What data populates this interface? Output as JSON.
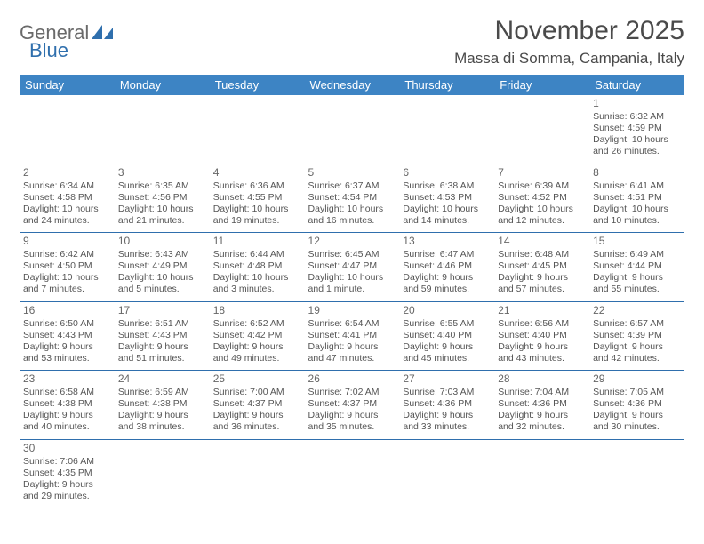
{
  "logo": {
    "text1": "General",
    "text2": "Blue"
  },
  "title": "November 2025",
  "location": "Massa di Somma, Campania, Italy",
  "colors": {
    "header_bg": "#3d84c4",
    "header_text": "#ffffff",
    "row_border": "#2f6fad",
    "body_text": "#555555",
    "title_text": "#4a4a4a",
    "logo_gray": "#6a6a6a",
    "logo_blue": "#2f6fad",
    "page_bg": "#ffffff"
  },
  "day_headers": [
    "Sunday",
    "Monday",
    "Tuesday",
    "Wednesday",
    "Thursday",
    "Friday",
    "Saturday"
  ],
  "first_weekday": 6,
  "days": [
    {
      "n": 1,
      "sunrise": "6:32 AM",
      "sunset": "4:59 PM",
      "daylight": "10 hours and 26 minutes."
    },
    {
      "n": 2,
      "sunrise": "6:34 AM",
      "sunset": "4:58 PM",
      "daylight": "10 hours and 24 minutes."
    },
    {
      "n": 3,
      "sunrise": "6:35 AM",
      "sunset": "4:56 PM",
      "daylight": "10 hours and 21 minutes."
    },
    {
      "n": 4,
      "sunrise": "6:36 AM",
      "sunset": "4:55 PM",
      "daylight": "10 hours and 19 minutes."
    },
    {
      "n": 5,
      "sunrise": "6:37 AM",
      "sunset": "4:54 PM",
      "daylight": "10 hours and 16 minutes."
    },
    {
      "n": 6,
      "sunrise": "6:38 AM",
      "sunset": "4:53 PM",
      "daylight": "10 hours and 14 minutes."
    },
    {
      "n": 7,
      "sunrise": "6:39 AM",
      "sunset": "4:52 PM",
      "daylight": "10 hours and 12 minutes."
    },
    {
      "n": 8,
      "sunrise": "6:41 AM",
      "sunset": "4:51 PM",
      "daylight": "10 hours and 10 minutes."
    },
    {
      "n": 9,
      "sunrise": "6:42 AM",
      "sunset": "4:50 PM",
      "daylight": "10 hours and 7 minutes."
    },
    {
      "n": 10,
      "sunrise": "6:43 AM",
      "sunset": "4:49 PM",
      "daylight": "10 hours and 5 minutes."
    },
    {
      "n": 11,
      "sunrise": "6:44 AM",
      "sunset": "4:48 PM",
      "daylight": "10 hours and 3 minutes."
    },
    {
      "n": 12,
      "sunrise": "6:45 AM",
      "sunset": "4:47 PM",
      "daylight": "10 hours and 1 minute."
    },
    {
      "n": 13,
      "sunrise": "6:47 AM",
      "sunset": "4:46 PM",
      "daylight": "9 hours and 59 minutes."
    },
    {
      "n": 14,
      "sunrise": "6:48 AM",
      "sunset": "4:45 PM",
      "daylight": "9 hours and 57 minutes."
    },
    {
      "n": 15,
      "sunrise": "6:49 AM",
      "sunset": "4:44 PM",
      "daylight": "9 hours and 55 minutes."
    },
    {
      "n": 16,
      "sunrise": "6:50 AM",
      "sunset": "4:43 PM",
      "daylight": "9 hours and 53 minutes."
    },
    {
      "n": 17,
      "sunrise": "6:51 AM",
      "sunset": "4:43 PM",
      "daylight": "9 hours and 51 minutes."
    },
    {
      "n": 18,
      "sunrise": "6:52 AM",
      "sunset": "4:42 PM",
      "daylight": "9 hours and 49 minutes."
    },
    {
      "n": 19,
      "sunrise": "6:54 AM",
      "sunset": "4:41 PM",
      "daylight": "9 hours and 47 minutes."
    },
    {
      "n": 20,
      "sunrise": "6:55 AM",
      "sunset": "4:40 PM",
      "daylight": "9 hours and 45 minutes."
    },
    {
      "n": 21,
      "sunrise": "6:56 AM",
      "sunset": "4:40 PM",
      "daylight": "9 hours and 43 minutes."
    },
    {
      "n": 22,
      "sunrise": "6:57 AM",
      "sunset": "4:39 PM",
      "daylight": "9 hours and 42 minutes."
    },
    {
      "n": 23,
      "sunrise": "6:58 AM",
      "sunset": "4:38 PM",
      "daylight": "9 hours and 40 minutes."
    },
    {
      "n": 24,
      "sunrise": "6:59 AM",
      "sunset": "4:38 PM",
      "daylight": "9 hours and 38 minutes."
    },
    {
      "n": 25,
      "sunrise": "7:00 AM",
      "sunset": "4:37 PM",
      "daylight": "9 hours and 36 minutes."
    },
    {
      "n": 26,
      "sunrise": "7:02 AM",
      "sunset": "4:37 PM",
      "daylight": "9 hours and 35 minutes."
    },
    {
      "n": 27,
      "sunrise": "7:03 AM",
      "sunset": "4:36 PM",
      "daylight": "9 hours and 33 minutes."
    },
    {
      "n": 28,
      "sunrise": "7:04 AM",
      "sunset": "4:36 PM",
      "daylight": "9 hours and 32 minutes."
    },
    {
      "n": 29,
      "sunrise": "7:05 AM",
      "sunset": "4:36 PM",
      "daylight": "9 hours and 30 minutes."
    },
    {
      "n": 30,
      "sunrise": "7:06 AM",
      "sunset": "4:35 PM",
      "daylight": "9 hours and 29 minutes."
    }
  ],
  "label_sunrise": "Sunrise: ",
  "label_sunset": "Sunset: ",
  "label_daylight": "Daylight: "
}
